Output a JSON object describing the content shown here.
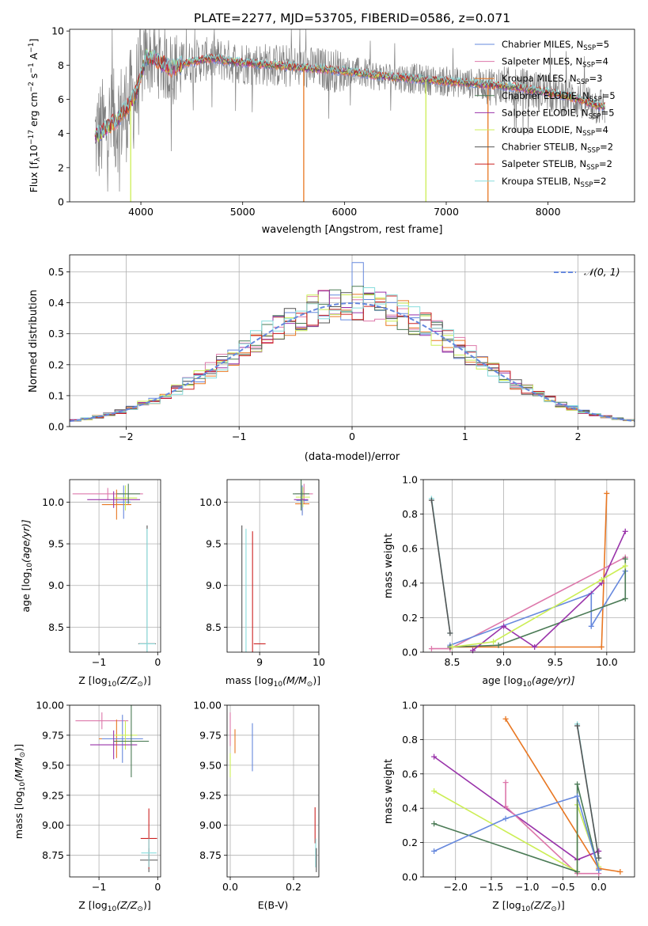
{
  "colors": {
    "chabrier_miles": "#6688dd",
    "salpeter_miles": "#dd77aa",
    "kroupa_miles": "#e87722",
    "chabrier_elodie": "#4a7a55",
    "salpeter_elodie": "#9933aa",
    "kroupa_elodie": "#ccee55",
    "chabrier_stelib": "#555555",
    "salpeter_stelib": "#cc2222",
    "kroupa_stelib": "#88dddd",
    "gauss": "#6688dd",
    "spectrum": "#808080"
  },
  "chart_data": [
    {
      "id": "spectrum",
      "type": "line",
      "title": "PLATE=2277, MJD=53705, FIBERID=0586, z=0.071",
      "xlabel": "wavelength [Angstrom, rest frame]",
      "ylabel_main": "Flux [f",
      "ylabel_sub1": "λ",
      "ylabel_mid": "10",
      "ylabel_sup1": "−17",
      "ylabel_rest": " erg cm",
      "ylabel_sup2": "−2",
      "ylabel_s": " s",
      "ylabel_sup3": "−1",
      "ylabel_A": " A",
      "ylabel_sup4": "−1",
      "ylabel_end": "]",
      "xlim": [
        3300,
        8850
      ],
      "ylim": [
        0,
        10.1
      ],
      "xticks": [
        4000,
        5000,
        6000,
        7000,
        8000
      ],
      "yticks": [
        0,
        2,
        4,
        6,
        8,
        10
      ],
      "legend_position": "top-right",
      "legend": [
        {
          "label": "Chabrier MILES, N",
          "sub": "SSP",
          "eq": "=5",
          "color": "chabrier_miles"
        },
        {
          "label": "Salpeter MILES, N",
          "sub": "SSP",
          "eq": "=4",
          "color": "salpeter_miles"
        },
        {
          "label": "Kroupa MILES, N",
          "sub": "SSP",
          "eq": "=3",
          "color": "kroupa_miles"
        },
        {
          "label": "Chabrier ELODIE, N",
          "sub": "SSP",
          "eq": "=5",
          "color": "chabrier_elodie"
        },
        {
          "label": "Salpeter ELODIE, N",
          "sub": "SSP",
          "eq": "=5",
          "color": "salpeter_elodie"
        },
        {
          "label": "Kroupa ELODIE, N",
          "sub": "SSP",
          "eq": "=4",
          "color": "kroupa_elodie"
        },
        {
          "label": "Chabrier STELIB, N",
          "sub": "SSP",
          "eq": "=2",
          "color": "chabrier_stelib"
        },
        {
          "label": "Salpeter STELIB, N",
          "sub": "SSP",
          "eq": "=2",
          "color": "salpeter_stelib"
        },
        {
          "label": "Kroupa STELIB, N",
          "sub": "SSP",
          "eq": "=2",
          "color": "kroupa_stelib"
        }
      ],
      "continuum": [
        [
          3550,
          3.8
        ],
        [
          3650,
          4.3
        ],
        [
          3750,
          4.7
        ],
        [
          3850,
          5.4
        ],
        [
          3950,
          6.3
        ],
        [
          4050,
          8.5
        ],
        [
          4150,
          8.3
        ],
        [
          4300,
          7.8
        ],
        [
          4500,
          8.2
        ],
        [
          4700,
          8.4
        ],
        [
          4900,
          8.2
        ],
        [
          5100,
          8.1
        ],
        [
          5300,
          8.0
        ],
        [
          5500,
          7.9
        ],
        [
          5700,
          7.8
        ],
        [
          5900,
          7.7
        ],
        [
          6100,
          7.6
        ],
        [
          6300,
          7.4
        ],
        [
          6500,
          7.3
        ],
        [
          6700,
          7.2
        ],
        [
          6900,
          7.1
        ],
        [
          7100,
          7.0
        ],
        [
          7300,
          6.9
        ],
        [
          7500,
          6.8
        ],
        [
          7700,
          6.7
        ],
        [
          7900,
          6.5
        ],
        [
          8100,
          6.3
        ],
        [
          8300,
          6.0
        ],
        [
          8500,
          5.6
        ]
      ],
      "dips": [
        {
          "x": 3900,
          "series": "kroupa_elodie",
          "y": 0
        },
        {
          "x": 5600,
          "series": "kroupa_miles",
          "y": 0
        },
        {
          "x": 6800,
          "series": "kroupa_elodie",
          "y": 0
        },
        {
          "x": 7410,
          "series": "kroupa_miles",
          "y": 0
        }
      ]
    },
    {
      "id": "residuals",
      "type": "histogram",
      "xlabel": "(data-model)/error",
      "ylabel": "Normed distribution",
      "xlim": [
        -2.5,
        2.5
      ],
      "ylim": [
        0,
        0.555
      ],
      "xticks": [
        -2,
        -1,
        0,
        1,
        2
      ],
      "yticks": [
        0.0,
        0.1,
        0.2,
        0.3,
        0.4,
        0.5
      ],
      "legend_position": "top-right",
      "legend_label": "𝒩(0, 1)",
      "bin_width": 0.1,
      "peak_bin": {
        "x": 0.05,
        "value": 0.53
      }
    },
    {
      "id": "age-vs-z",
      "type": "errorbar",
      "xlabel_main": "Z [log",
      "xlabel_sub": "10",
      "xlabel_rest": "(Z/Z",
      "xlabel_sun": "⊙",
      "xlabel_end": ")]",
      "ylabel_main": "age  [log",
      "ylabel_sub": "10",
      "ylabel_rest": "(age/yr)]",
      "xlim": [
        -1.5,
        0.05
      ],
      "ylim": [
        8.2,
        10.27
      ],
      "xticks": [
        -1,
        0
      ],
      "yticks": [
        8.5,
        9.0,
        9.5,
        10.0
      ],
      "points": [
        {
          "series": "salpeter_miles",
          "x": -0.85,
          "xerr": 0.6,
          "y": 10.1,
          "yerr": 0.07
        },
        {
          "series": "kroupa_miles",
          "x": -0.7,
          "xerr": 0.25,
          "y": 9.97,
          "yerr": 0.18
        },
        {
          "series": "chabrier_miles",
          "x": -0.58,
          "xerr": 0.12,
          "y": 10.0,
          "yerr": 0.2
        },
        {
          "series": "kroupa_elodie",
          "x": -0.55,
          "xerr": 0.2,
          "y": 10.05,
          "yerr": 0.15
        },
        {
          "series": "salpeter_elodie",
          "x": -0.75,
          "xerr": 0.45,
          "y": 10.03,
          "yerr": 0.1
        },
        {
          "series": "chabrier_elodie",
          "x": -0.5,
          "xerr": 0.2,
          "y": 10.1,
          "yerr": 0.12
        },
        {
          "series": "chabrier_stelib",
          "x": -0.18,
          "xerr": 0.15,
          "y": 8.3,
          "yerr": 1.42
        },
        {
          "series": "salpeter_stelib",
          "x": -0.18,
          "xerr": 0.14,
          "y": 8.3,
          "yerr": 0.0
        },
        {
          "series": "kroupa_stelib",
          "x": -0.18,
          "xerr": 0.14,
          "y": 8.3,
          "yerr": 1.38
        }
      ]
    },
    {
      "id": "age-vs-mass",
      "type": "errorbar",
      "xlabel_main": "mass [log",
      "xlabel_sub": "10",
      "xlabel_rest": "(M/M",
      "xlabel_sun": "⊙",
      "xlabel_end": ")]",
      "xlim": [
        8.45,
        10.0
      ],
      "ylim": [
        8.2,
        10.27
      ],
      "xticks": [
        8,
        9,
        10
      ],
      "yticks": [
        8.5,
        9.0,
        9.5,
        10.0
      ],
      "points": [
        {
          "series": "salpeter_miles",
          "x": 9.75,
          "xerr": 0.15,
          "y": 10.1,
          "yerr": 0.12
        },
        {
          "series": "kroupa_miles",
          "x": 9.72,
          "xerr": 0.12,
          "y": 9.98,
          "yerr": 0.12
        },
        {
          "series": "chabrier_miles",
          "x": 9.72,
          "xerr": 0.1,
          "y": 10.02,
          "yerr": 0.18
        },
        {
          "series": "kroupa_elodie",
          "x": 9.73,
          "xerr": 0.12,
          "y": 10.06,
          "yerr": 0.12
        },
        {
          "series": "salpeter_elodie",
          "x": 9.7,
          "xerr": 0.12,
          "y": 10.03,
          "yerr": 0.1
        },
        {
          "series": "chabrier_elodie",
          "x": 9.7,
          "xerr": 0.14,
          "y": 10.1,
          "yerr": 0.2
        },
        {
          "series": "chabrier_stelib",
          "x": 8.7,
          "xerr": 0.0,
          "y": 8.3,
          "yerr": 1.42
        },
        {
          "series": "kroupa_stelib",
          "x": 8.77,
          "xerr": 0.0,
          "y": 8.3,
          "yerr": 1.38
        },
        {
          "series": "salpeter_stelib",
          "x": 8.88,
          "xerr": 0.0,
          "y": 8.3,
          "yerr": 1.35
        },
        {
          "series": "salpeter_stelib",
          "x": 9.0,
          "xerr": 0.1,
          "y": 8.3,
          "yerr": 0.0
        }
      ]
    },
    {
      "id": "weight-vs-age",
      "type": "line",
      "xlabel_main": "age  [log",
      "xlabel_sub": "10",
      "xlabel_rest": "(age/yr)]",
      "ylabel": "mass weight",
      "xlim": [
        8.22,
        10.27
      ],
      "ylim": [
        0,
        1.0
      ],
      "xticks": [
        8.5,
        9.0,
        9.5,
        10.0
      ],
      "yticks": [
        0.0,
        0.2,
        0.4,
        0.6,
        0.8,
        1.0
      ],
      "series": [
        {
          "key": "kroupa_stelib",
          "x": [
            8.3,
            8.48
          ],
          "y": [
            0.89,
            0.11
          ]
        },
        {
          "key": "chabrier_stelib",
          "x": [
            8.3,
            8.48
          ],
          "y": [
            0.88,
            0.11
          ]
        },
        {
          "key": "kroupa_miles",
          "x": [
            8.48,
            9.95,
            10.0
          ],
          "y": [
            0.03,
            0.03,
            0.92
          ]
        },
        {
          "key": "salpeter_miles",
          "x": [
            8.3,
            8.48,
            10.18
          ],
          "y": [
            0.02,
            0.02,
            0.55
          ]
        },
        {
          "key": "chabrier_miles",
          "x": [
            8.48,
            9.85,
            9.85,
            10.18
          ],
          "y": [
            0.04,
            0.34,
            0.15,
            0.47
          ]
        },
        {
          "key": "chabrier_elodie",
          "x": [
            8.48,
            8.95,
            10.18,
            10.18
          ],
          "y": [
            0.03,
            0.04,
            0.31,
            0.54
          ]
        },
        {
          "key": "salpeter_elodie",
          "x": [
            8.7,
            9.0,
            9.3,
            9.95,
            10.18
          ],
          "y": [
            0.01,
            0.15,
            0.03,
            0.4,
            0.7
          ]
        },
        {
          "key": "kroupa_elodie",
          "x": [
            8.5,
            8.9,
            9.95,
            10.18
          ],
          "y": [
            0.03,
            0.06,
            0.42,
            0.5
          ]
        }
      ]
    },
    {
      "id": "mass-vs-z",
      "type": "errorbar",
      "xlabel_main": "Z [log",
      "xlabel_sub": "10",
      "xlabel_rest": "(Z/Z",
      "xlabel_sun": "⊙",
      "xlabel_end": ")]",
      "ylabel_main": "mass [log",
      "ylabel_sub": "10",
      "ylabel_rest": "(M/M",
      "ylabel_sun": "⊙",
      "ylabel_end": ")]",
      "xlim": [
        -1.5,
        0.05
      ],
      "ylim": [
        8.57,
        10.0
      ],
      "xticks": [
        -1,
        0
      ],
      "yticks": [
        8.75,
        9.0,
        9.25,
        9.5,
        9.75,
        10.0
      ],
      "points": [
        {
          "series": "salpeter_miles",
          "x": -0.95,
          "xerr": 0.45,
          "y": 9.87,
          "yerr": 0.07
        },
        {
          "series": "kroupa_miles",
          "x": -0.7,
          "xerr": 0.3,
          "y": 9.72,
          "yerr": 0.16
        },
        {
          "series": "chabrier_miles",
          "x": -0.6,
          "xerr": 0.35,
          "y": 9.72,
          "yerr": 0.2
        },
        {
          "series": "kroupa_elodie",
          "x": -0.55,
          "xerr": 0.2,
          "y": 9.75,
          "yerr": 0.12
        },
        {
          "series": "salpeter_elodie",
          "x": -0.75,
          "xerr": 0.4,
          "y": 9.67,
          "yerr": 0.12
        },
        {
          "series": "chabrier_elodie",
          "x": -0.45,
          "xerr": 0.3,
          "y": 9.7,
          "yerr": 0.3
        },
        {
          "series": "chabrier_stelib",
          "x": -0.15,
          "xerr": 0.15,
          "y": 8.71,
          "yerr": 0.1
        },
        {
          "series": "salpeter_stelib",
          "x": -0.15,
          "xerr": 0.14,
          "y": 8.89,
          "yerr": 0.25
        },
        {
          "series": "kroupa_stelib",
          "x": -0.15,
          "xerr": 0.13,
          "y": 8.77,
          "yerr": 0.12
        }
      ]
    },
    {
      "id": "mass-vs-ebv",
      "type": "errorbar",
      "xlabel": "E(B-V)",
      "xlim": [
        -0.01,
        0.28
      ],
      "ylim": [
        8.57,
        10.0
      ],
      "xticks": [
        0.0,
        0.2
      ],
      "yticks": [
        8.75,
        9.0,
        9.25,
        9.5,
        9.75,
        10.0
      ],
      "points": [
        {
          "series": "salpeter_miles",
          "x": 0.0,
          "xerr": 0.0,
          "y": 9.8,
          "yerr": 0.14
        },
        {
          "series": "kroupa_miles",
          "x": 0.015,
          "xerr": 0.0,
          "y": 9.7,
          "yerr": 0.1
        },
        {
          "series": "kroupa_elodie",
          "x": 0.0,
          "xerr": 0.0,
          "y": 9.5,
          "yerr": 0.1
        },
        {
          "series": "chabrier_miles",
          "x": 0.07,
          "xerr": 0.0,
          "y": 9.65,
          "yerr": 0.2
        },
        {
          "series": "salpeter_stelib",
          "x": 0.268,
          "xerr": 0.0,
          "y": 9.0,
          "yerr": 0.15
        },
        {
          "series": "kroupa_stelib",
          "x": 0.27,
          "xerr": 0.0,
          "y": 8.77,
          "yerr": 0.12
        },
        {
          "series": "chabrier_stelib",
          "x": 0.272,
          "xerr": 0.0,
          "y": 8.71,
          "yerr": 0.1
        }
      ]
    },
    {
      "id": "weight-vs-z",
      "type": "line",
      "xlabel_main": "Z [log",
      "xlabel_sub": "10",
      "xlabel_rest": "(Z/Z",
      "xlabel_sun": "⊙",
      "xlabel_end": ")]",
      "ylabel": "mass weight",
      "xlim": [
        -2.45,
        0.5
      ],
      "ylim": [
        0,
        1.0
      ],
      "xticks": [
        -2.0,
        -1.5,
        -1.0,
        -0.5,
        0.0
      ],
      "yticks": [
        0.0,
        0.2,
        0.4,
        0.6,
        0.8,
        1.0
      ],
      "series": [
        {
          "key": "kroupa_miles",
          "x": [
            -1.3,
            0.0,
            0.3
          ],
          "y": [
            0.92,
            0.05,
            0.03
          ]
        },
        {
          "key": "salpeter_elodie",
          "x": [
            -2.3,
            -0.3,
            0.0
          ],
          "y": [
            0.7,
            0.1,
            0.15
          ]
        },
        {
          "key": "salpeter_miles",
          "x": [
            -1.3,
            -1.3,
            -0.3,
            0.0
          ],
          "y": [
            0.55,
            0.41,
            0.02,
            0.02
          ]
        },
        {
          "key": "kroupa_elodie",
          "x": [
            -2.3,
            -0.3,
            -0.3,
            0.0
          ],
          "y": [
            0.5,
            0.03,
            0.42,
            0.06
          ]
        },
        {
          "key": "chabrier_elodie",
          "x": [
            -2.3,
            -0.3,
            -0.3,
            0.0
          ],
          "y": [
            0.31,
            0.03,
            0.54,
            0.04
          ]
        },
        {
          "key": "chabrier_miles",
          "x": [
            -2.3,
            -1.3,
            -0.3,
            0.0
          ],
          "y": [
            0.15,
            0.34,
            0.47,
            0.04
          ]
        },
        {
          "key": "kroupa_stelib",
          "x": [
            -0.3,
            0.0
          ],
          "y": [
            0.89,
            0.11
          ]
        },
        {
          "key": "chabrier_stelib",
          "x": [
            -0.3,
            0.0
          ],
          "y": [
            0.88,
            0.11
          ]
        }
      ]
    }
  ]
}
